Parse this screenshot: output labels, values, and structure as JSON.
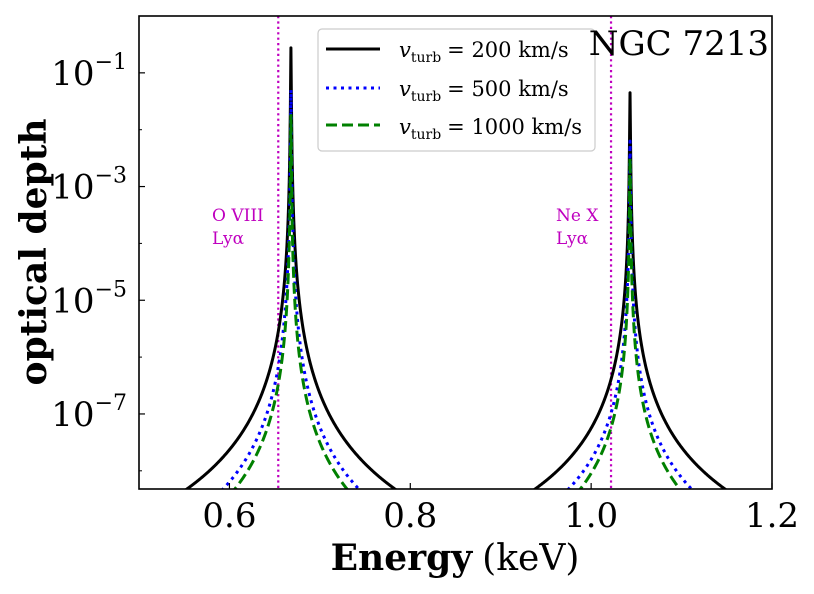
{
  "chart_data": {
    "type": "line",
    "title": "NGC 7213",
    "xlabel_bold": "Energy",
    "xlabel_unit": "(keV)",
    "ylabel": "optical depth",
    "xlim": [
      0.5,
      1.2
    ],
    "ylim_log10": [
      -8.32,
      0.0
    ],
    "yscale": "log",
    "grid": false,
    "legend_placement": "top-center",
    "x_ticks": [
      {
        "value": 0.6,
        "label": "0.6"
      },
      {
        "value": 0.8,
        "label": "0.8"
      },
      {
        "value": 1.0,
        "label": "1.0"
      },
      {
        "value": 1.2,
        "label": "1.2"
      }
    ],
    "y_ticks": [
      {
        "log10": -1,
        "base": "10",
        "exp": "−1"
      },
      {
        "log10": -3,
        "base": "10",
        "exp": "−3"
      },
      {
        "log10": -5,
        "base": "10",
        "exp": "−5"
      },
      {
        "log10": -7,
        "base": "10",
        "exp": "−7"
      }
    ],
    "lines": [
      {
        "name": "O VIII Lyα",
        "label_line1": "O VIII",
        "label_line2": "Lyα",
        "energy": 0.654,
        "color": "#bf00bf",
        "line_energy_peak": 0.668
      },
      {
        "name": "Ne X Lyα",
        "label_line1": "Ne X",
        "label_line2": "Lyα",
        "energy": 1.022,
        "color": "#bf00bf",
        "line_energy_peak": 1.043
      }
    ],
    "series": [
      {
        "name": "v_turb = 200 km/s",
        "legend_var": "v",
        "legend_sub": "turb",
        "legend_value": "= 200 km/s",
        "color": "#000000",
        "style": "solid",
        "peaks": [
          {
            "center": 0.668,
            "peak_log10": -0.56,
            "wing_width": 0.115
          },
          {
            "center": 1.043,
            "peak_log10": -1.35,
            "wing_width": 0.105
          }
        ]
      },
      {
        "name": "v_turb = 500 km/s",
        "legend_var": "v",
        "legend_sub": "turb",
        "legend_value": "= 500 km/s",
        "color": "#0000ff",
        "style": "dotted",
        "peaks": [
          {
            "center": 0.668,
            "peak_log10": -1.3,
            "wing_width": 0.075
          },
          {
            "center": 1.043,
            "peak_log10": -2.2,
            "wing_width": 0.068
          }
        ]
      },
      {
        "name": "v_turb = 1000 km/s",
        "legend_var": "v",
        "legend_sub": "turb",
        "legend_value": "= 1000 km/s",
        "color": "#008000",
        "style": "dashed",
        "peaks": [
          {
            "center": 0.668,
            "peak_log10": -1.75,
            "wing_width": 0.062
          },
          {
            "center": 1.043,
            "peak_log10": -2.5,
            "wing_width": 0.055
          }
        ]
      }
    ]
  }
}
